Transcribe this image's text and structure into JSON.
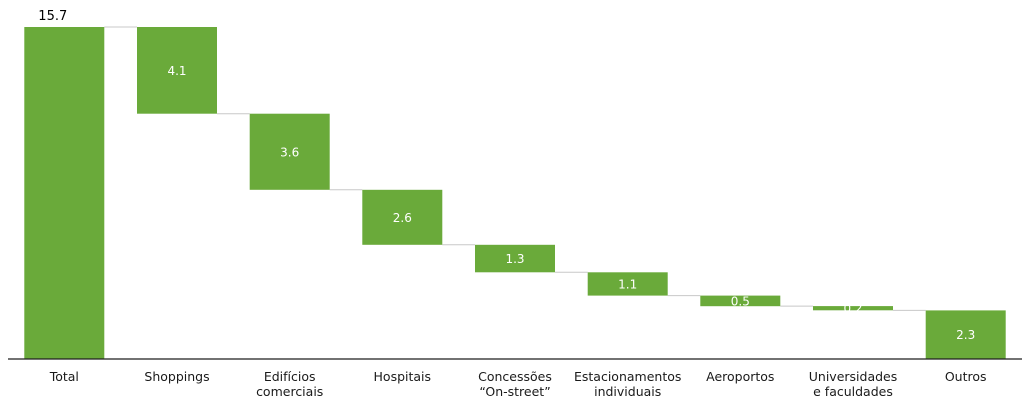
{
  "chart_data": {
    "type": "bar",
    "subtype": "waterfall",
    "categories": [
      [
        "Total"
      ],
      [
        "Shoppings"
      ],
      [
        "Edifícios",
        "comerciais"
      ],
      [
        "Hospitais"
      ],
      [
        "Concessões",
        "“On-street”"
      ],
      [
        "Estacionamentos",
        "individuais"
      ],
      [
        "Aeroportos"
      ],
      [
        "Universidades",
        "e faculdades"
      ],
      [
        "Outros"
      ]
    ],
    "values": [
      15.7,
      4.1,
      3.6,
      2.6,
      1.3,
      1.1,
      0.5,
      0.2,
      2.3
    ],
    "value_labels": [
      "15.7",
      "4.1",
      "3.6",
      "2.6",
      "1.3",
      "1.1",
      "0.5",
      "0.2",
      "2.3"
    ],
    "title": "",
    "xlabel": "",
    "ylabel": "",
    "ylim": [
      0,
      15.7
    ],
    "grid": false,
    "legend": "none",
    "colors": {
      "bar": "#6aaa3a",
      "connector": "#c8c8c8",
      "baseline": "#1f1f1f"
    }
  }
}
